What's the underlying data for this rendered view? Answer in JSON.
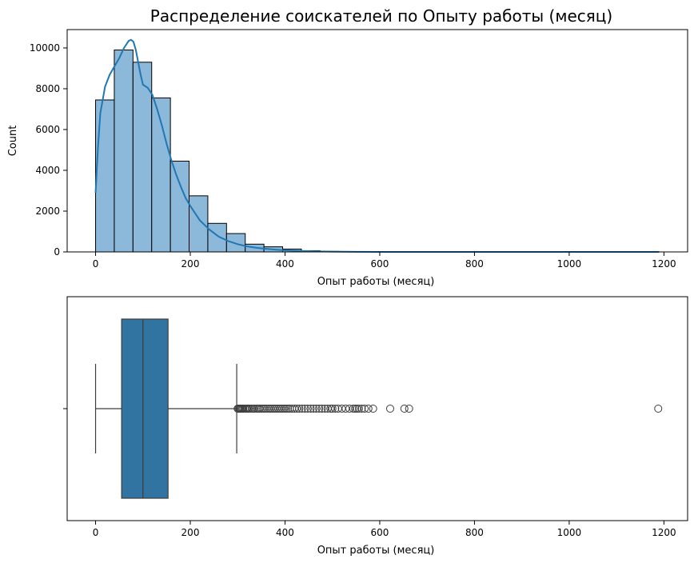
{
  "chart_data": [
    {
      "type": "bar",
      "title": "Распределение соискателей по Опыту работы (месяц)",
      "xlabel": "Опыт работы (месяц)",
      "ylabel": "Count",
      "xlim": [
        -60,
        1250
      ],
      "ylim": [
        0,
        10900
      ],
      "xticks": [
        0,
        200,
        400,
        600,
        800,
        1000,
        1200
      ],
      "yticks": [
        0,
        2000,
        4000,
        6000,
        8000,
        10000
      ],
      "bin_width": 39.5,
      "bins": [
        {
          "x0": 0,
          "x1": 39.5,
          "count": 7450
        },
        {
          "x0": 39.5,
          "x1": 79,
          "count": 9900
        },
        {
          "x0": 79,
          "x1": 118.5,
          "count": 9300
        },
        {
          "x0": 118.5,
          "x1": 158,
          "count": 7550
        },
        {
          "x0": 158,
          "x1": 197.5,
          "count": 4450
        },
        {
          "x0": 197.5,
          "x1": 237,
          "count": 2750
        },
        {
          "x0": 237,
          "x1": 276.5,
          "count": 1400
        },
        {
          "x0": 276.5,
          "x1": 316,
          "count": 900
        },
        {
          "x0": 316,
          "x1": 355.5,
          "count": 380
        },
        {
          "x0": 355.5,
          "x1": 395,
          "count": 250
        },
        {
          "x0": 395,
          "x1": 434.5,
          "count": 140
        },
        {
          "x0": 434.5,
          "x1": 474,
          "count": 60
        },
        {
          "x0": 474,
          "x1": 513.5,
          "count": 25
        },
        {
          "x0": 513.5,
          "x1": 553,
          "count": 12
        },
        {
          "x0": 553,
          "x1": 592.5,
          "count": 6
        },
        {
          "x0": 592.5,
          "x1": 632,
          "count": 3
        },
        {
          "x0": 632,
          "x1": 671.5,
          "count": 2
        },
        {
          "x0": 671.5,
          "x1": 711,
          "count": 1
        },
        {
          "x0": 711,
          "x1": 750.5,
          "count": 1
        },
        {
          "x0": 750.5,
          "x1": 790,
          "count": 0
        },
        {
          "x0": 790,
          "x1": 829.5,
          "count": 0
        },
        {
          "x0": 829.5,
          "x1": 869,
          "count": 0
        },
        {
          "x0": 869,
          "x1": 908.5,
          "count": 0
        },
        {
          "x0": 908.5,
          "x1": 948,
          "count": 0
        },
        {
          "x0": 948,
          "x1": 987.5,
          "count": 0
        },
        {
          "x0": 987.5,
          "x1": 1027,
          "count": 0
        },
        {
          "x0": 1027,
          "x1": 1066.5,
          "count": 0
        },
        {
          "x0": 1066.5,
          "x1": 1106,
          "count": 0
        },
        {
          "x0": 1106,
          "x1": 1145.5,
          "count": 0
        },
        {
          "x0": 1145.5,
          "x1": 1185,
          "count": 1
        }
      ],
      "kde": {
        "x": [
          0,
          5,
          10,
          20,
          30,
          40,
          50,
          60,
          70,
          75,
          80,
          85,
          90,
          95,
          100,
          110,
          120,
          130,
          140,
          150,
          160,
          170,
          180,
          190,
          200,
          220,
          240,
          260,
          280,
          300,
          320,
          340,
          360,
          380,
          400,
          430,
          460,
          500,
          550,
          600,
          700,
          800,
          1000,
          1190
        ],
        "y": [
          2900,
          5100,
          6800,
          8100,
          8700,
          9100,
          9500,
          10000,
          10350,
          10400,
          10300,
          9900,
          9300,
          8700,
          8200,
          8050,
          7700,
          7000,
          6200,
          5300,
          4500,
          3800,
          3200,
          2650,
          2250,
          1550,
          1100,
          750,
          530,
          380,
          270,
          200,
          150,
          110,
          80,
          50,
          30,
          14,
          6,
          2,
          0,
          0,
          0,
          0
        ]
      },
      "grid": false,
      "bar_color": "#8cb8da",
      "kde_color": "#1f77b4"
    },
    {
      "type": "box",
      "xlabel": "Опыт работы (месяц)",
      "xlim": [
        -60,
        1250
      ],
      "xticks": [
        0,
        200,
        400,
        600,
        800,
        1000,
        1200
      ],
      "ytick_labels": [
        ""
      ],
      "whisker_low": 0,
      "q1": 55,
      "median": 100,
      "q3": 153,
      "whisker_high": 298,
      "outliers": [
        300,
        302,
        304,
        306,
        308,
        310,
        312,
        315,
        318,
        320,
        323,
        326,
        330,
        333,
        336,
        340,
        343,
        346,
        350,
        354,
        358,
        362,
        366,
        370,
        374,
        378,
        382,
        386,
        390,
        394,
        398,
        402,
        406,
        410,
        415,
        420,
        425,
        430,
        436,
        442,
        448,
        454,
        460,
        466,
        472,
        478,
        484,
        490,
        496,
        500,
        506,
        512,
        520,
        528,
        536,
        544,
        548,
        552,
        556,
        562,
        568,
        576,
        586,
        622,
        652,
        662,
        1188
      ],
      "box_color": "#3274a1"
    }
  ]
}
